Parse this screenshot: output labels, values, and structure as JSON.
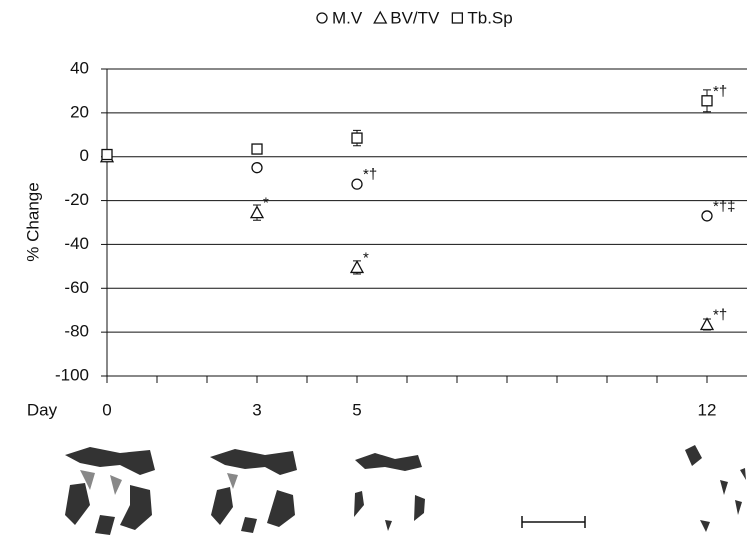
{
  "chart_data": {
    "type": "scatter",
    "y_label": "% Change",
    "x_label": "Day",
    "xlim": [
      0,
      12.8
    ],
    "xticks": [
      0,
      3,
      5,
      12
    ],
    "xminorticks": [
      1,
      2,
      4,
      6,
      7,
      8,
      9,
      10,
      11,
      12
    ],
    "ylim": [
      -100,
      40
    ],
    "yticks": [
      -100,
      -80,
      -60,
      -40,
      -20,
      0,
      20,
      40
    ],
    "grid": true,
    "legend": "top",
    "series": [
      {
        "name": "M.V",
        "marker": "circle",
        "color": "#111111",
        "x": [
          0,
          3,
          5,
          12
        ],
        "values": [
          0,
          -5,
          -12.5,
          -27
        ],
        "errors": [
          1,
          1.5,
          1.5,
          1.5
        ],
        "annotations": [
          null,
          null,
          "*†",
          "*†‡"
        ]
      },
      {
        "name": "BV/TV",
        "marker": "triangle",
        "color": "#111111",
        "x": [
          0,
          3,
          5,
          12
        ],
        "values": [
          0,
          -25.5,
          -50.5,
          -76.5
        ],
        "errors": [
          1,
          3.5,
          3,
          2.5
        ],
        "annotations": [
          null,
          "*",
          "*",
          "*†"
        ]
      },
      {
        "name": "Tb.Sp",
        "marker": "square",
        "color": "#111111",
        "x": [
          0,
          3,
          5,
          12
        ],
        "values": [
          1,
          3.5,
          8.5,
          25.5
        ],
        "errors": [
          1,
          2,
          3.5,
          5
        ],
        "annotations": [
          null,
          null,
          null,
          "*†"
        ]
      }
    ]
  }
}
